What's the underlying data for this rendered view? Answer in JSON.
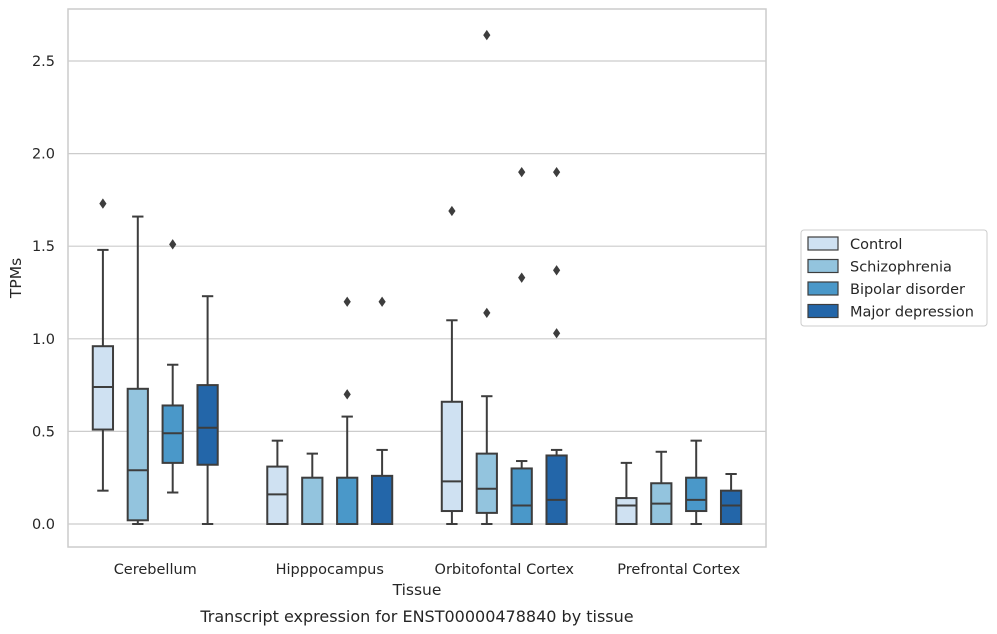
{
  "chart_data": {
    "type": "boxplot",
    "title": "",
    "caption": "Transcript expression for ENST00000478840 by tissue",
    "xlabel": "Tissue",
    "ylabel": "TPMs",
    "ylim": [
      -0.13,
      2.78
    ],
    "yticks": [
      0.0,
      0.5,
      1.0,
      1.5,
      2.0,
      2.5
    ],
    "ytick_labels": [
      "0.0",
      "0.5",
      "1.0",
      "1.5",
      "2.0",
      "2.5"
    ],
    "grid": "horizontal",
    "legend_position": "right",
    "categories": [
      "Cerebellum",
      "Hipppocampus",
      "Orbitofontal Cortex",
      "Prefrontal Cortex"
    ],
    "series": [
      {
        "name": "Control",
        "color": "#cfe1f2",
        "boxes": [
          {
            "whislo": 0.18,
            "q1": 0.51,
            "med": 0.74,
            "q3": 0.96,
            "whishi": 1.48,
            "fliers": [
              1.73
            ]
          },
          {
            "whislo": 0.0,
            "q1": 0.0,
            "med": 0.16,
            "q3": 0.31,
            "whishi": 0.45,
            "fliers": []
          },
          {
            "whislo": 0.0,
            "q1": 0.07,
            "med": 0.23,
            "q3": 0.66,
            "whishi": 1.1,
            "fliers": [
              1.69
            ]
          },
          {
            "whislo": 0.0,
            "q1": 0.0,
            "med": 0.1,
            "q3": 0.14,
            "whishi": 0.33,
            "fliers": []
          }
        ]
      },
      {
        "name": "Schizophrenia",
        "color": "#93c4de",
        "boxes": [
          {
            "whislo": 0.0,
            "q1": 0.02,
            "med": 0.29,
            "q3": 0.73,
            "whishi": 1.66,
            "fliers": []
          },
          {
            "whislo": 0.0,
            "q1": 0.0,
            "med": 0.0,
            "q3": 0.25,
            "whishi": 0.38,
            "fliers": []
          },
          {
            "whislo": 0.0,
            "q1": 0.06,
            "med": 0.19,
            "q3": 0.38,
            "whishi": 0.69,
            "fliers": [
              1.14,
              2.64
            ]
          },
          {
            "whislo": 0.0,
            "q1": 0.0,
            "med": 0.11,
            "q3": 0.22,
            "whishi": 0.39,
            "fliers": []
          }
        ]
      },
      {
        "name": "Bipolar disorder",
        "color": "#4a98c9",
        "boxes": [
          {
            "whislo": 0.17,
            "q1": 0.33,
            "med": 0.49,
            "q3": 0.64,
            "whishi": 0.86,
            "fliers": [
              1.51
            ]
          },
          {
            "whislo": 0.0,
            "q1": 0.0,
            "med": 0.0,
            "q3": 0.25,
            "whishi": 0.58,
            "fliers": [
              0.7,
              1.2
            ]
          },
          {
            "whislo": 0.0,
            "q1": 0.0,
            "med": 0.1,
            "q3": 0.3,
            "whishi": 0.34,
            "fliers": [
              1.33,
              1.9
            ]
          },
          {
            "whislo": 0.0,
            "q1": 0.07,
            "med": 0.13,
            "q3": 0.25,
            "whishi": 0.45,
            "fliers": []
          }
        ]
      },
      {
        "name": "Major depression",
        "color": "#2366a9",
        "boxes": [
          {
            "whislo": 0.0,
            "q1": 0.32,
            "med": 0.52,
            "q3": 0.75,
            "whishi": 1.23,
            "fliers": []
          },
          {
            "whislo": 0.0,
            "q1": 0.0,
            "med": 0.0,
            "q3": 0.26,
            "whishi": 0.4,
            "fliers": [
              1.2
            ]
          },
          {
            "whislo": 0.0,
            "q1": 0.0,
            "med": 0.13,
            "q3": 0.37,
            "whishi": 0.4,
            "fliers": [
              1.03,
              1.37,
              1.9
            ]
          },
          {
            "whislo": 0.0,
            "q1": 0.0,
            "med": 0.1,
            "q3": 0.18,
            "whishi": 0.27,
            "fliers": []
          }
        ]
      }
    ]
  }
}
